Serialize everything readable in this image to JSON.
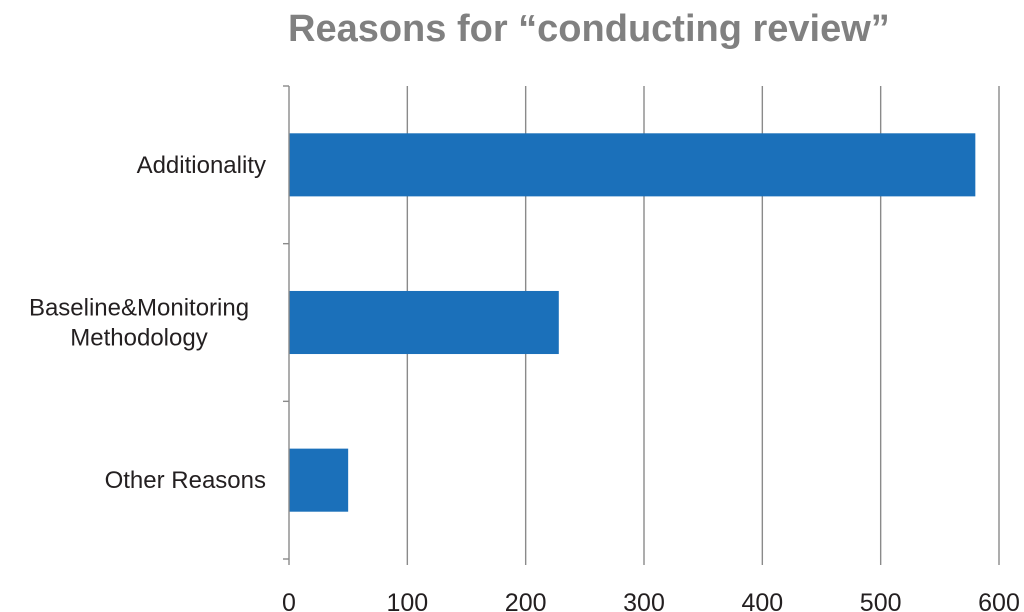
{
  "chart_data": {
    "type": "bar",
    "orientation": "horizontal",
    "title": "Reasons for “conducting review”",
    "categories": [
      [
        "Additionality"
      ],
      [
        "Baseline&Monitoring",
        "Methodology"
      ],
      [
        "Other Reasons"
      ]
    ],
    "values": [
      580,
      228,
      50
    ],
    "xlabel": "",
    "ylabel": "",
    "xlim": [
      0,
      600
    ],
    "xticks": [
      0,
      100,
      200,
      300,
      400,
      500,
      600
    ],
    "grid": true,
    "legend": "none",
    "bar_color": "#1b70ba",
    "grid_color": "#8a8a8a",
    "title_color": "#808080",
    "text_color": "#231f20"
  }
}
